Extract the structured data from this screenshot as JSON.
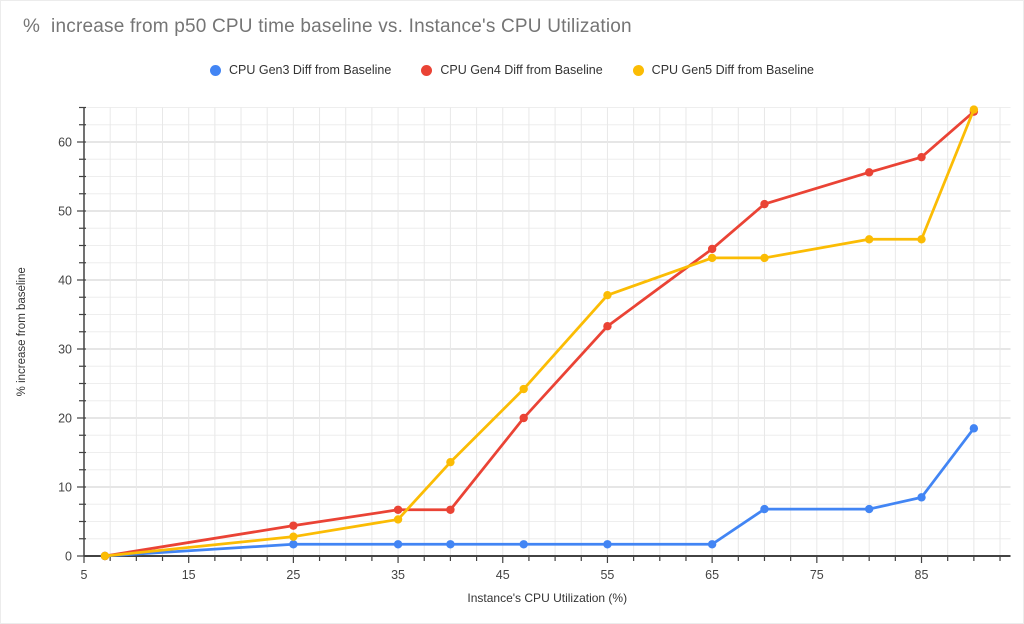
{
  "chart_data": {
    "type": "line",
    "title": "%  increase from p50 CPU time baseline vs. Instance's CPU Utilization",
    "xlabel": "Instance's CPU Utilization (%)",
    "ylabel": "% increase from baseline",
    "grid": true,
    "legend_position": "top-center",
    "x": [
      7,
      25,
      35,
      40,
      47,
      55,
      65,
      70,
      80,
      85,
      90
    ],
    "series": [
      {
        "name": "CPU Gen3 Diff from Baseline",
        "color": "#4285F4",
        "values": [
          0,
          1.7,
          1.7,
          1.7,
          1.7,
          1.7,
          1.7,
          6.8,
          6.8,
          8.5,
          18.5
        ]
      },
      {
        "name": "CPU Gen4 Diff from Baseline",
        "color": "#EA4335",
        "values": [
          0,
          4.4,
          6.7,
          6.7,
          20.0,
          33.3,
          44.5,
          51.0,
          55.6,
          57.8,
          64.4
        ]
      },
      {
        "name": "CPU Gen5 Diff from Baseline",
        "color": "#FBBC04",
        "values": [
          0,
          2.8,
          5.3,
          13.6,
          24.2,
          37.8,
          43.2,
          43.2,
          45.9,
          45.9,
          64.7
        ]
      }
    ],
    "x_axis": {
      "min": 5,
      "max": 93.5,
      "major_step": 10,
      "minor_step": 2.5,
      "tick_labels": [
        "5",
        "15",
        "25",
        "35",
        "45",
        "55",
        "65",
        "75",
        "85"
      ]
    },
    "y_axis": {
      "min": 0,
      "max": 65,
      "major_step": 10,
      "minor_step": 2.5,
      "tick_labels": [
        "0",
        "10",
        "20",
        "30",
        "40",
        "50",
        "60"
      ]
    }
  },
  "colors": {
    "title_text": "#757575",
    "legend_text": "#333333",
    "tick_label_text": "#444444",
    "axis_line": "#424242",
    "major_gridline": "#cccccc",
    "minor_gridline": "#eeeeee",
    "vertical_gridline": "#e8e8e8",
    "background": "#ffffff"
  }
}
